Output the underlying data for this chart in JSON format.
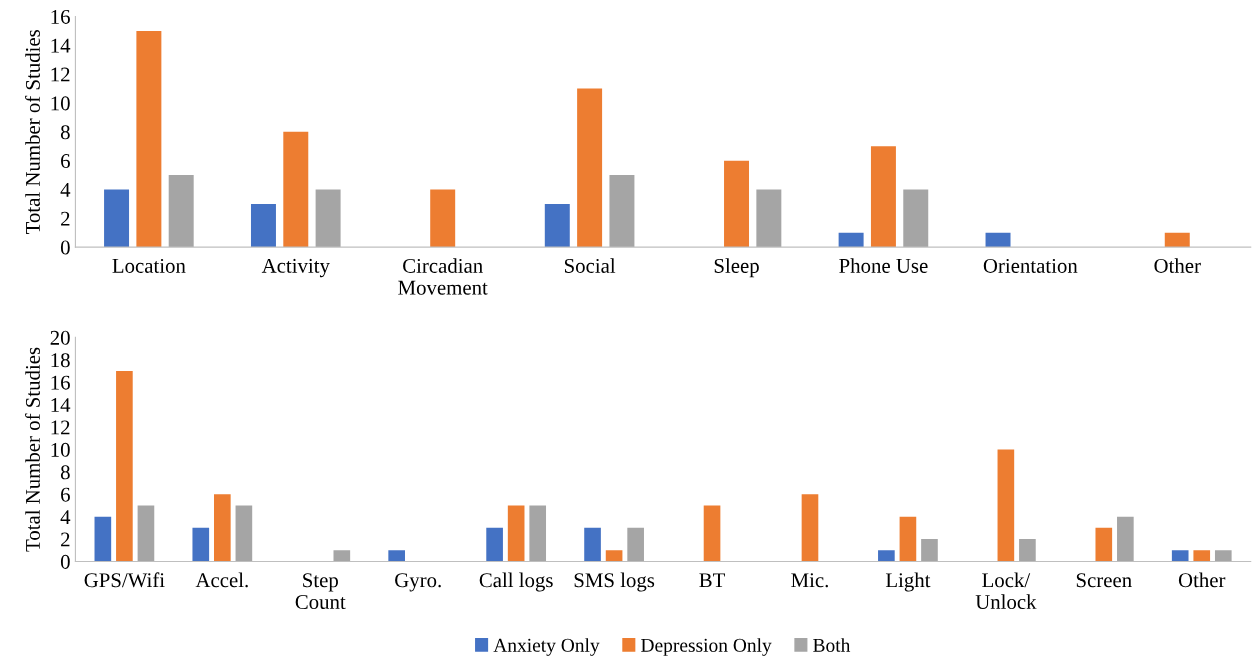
{
  "chart_data": [
    {
      "type": "bar",
      "ylabel": "Total Number of Studies",
      "categories": [
        "Location",
        "Activity",
        "Circadian\nMovement",
        "Social",
        "Sleep",
        "Phone Use",
        "Orientation",
        "Other"
      ],
      "series": [
        {
          "color": "#4472c4",
          "values": [
            4,
            3,
            null,
            3,
            null,
            1,
            1,
            null
          ]
        },
        {
          "color": "#ed7d31",
          "values": [
            15,
            8,
            4,
            11,
            6,
            7,
            null,
            1
          ]
        },
        {
          "color": "#a5a5a5",
          "values": [
            5,
            4,
            null,
            5,
            4,
            4,
            null,
            null
          ]
        }
      ],
      "ylim": [
        0,
        16
      ],
      "yticks": [
        0,
        2,
        4,
        6,
        8,
        10,
        12,
        14,
        16
      ],
      "grid": false,
      "legend": false
    },
    {
      "type": "bar",
      "ylabel": "Total Number of Studies",
      "categories": [
        "GPS/Wifi",
        "Accel.",
        "Step\nCount",
        "Gyro.",
        "Call logs",
        "SMS logs",
        "BT",
        "Mic.",
        "Light",
        "Lock/\nUnlock",
        "Screen",
        "Other"
      ],
      "series": [
        {
          "name": "Anxiety Only",
          "color": "#4472c4",
          "values": [
            4,
            3,
            null,
            1,
            3,
            3,
            null,
            null,
            1,
            null,
            null,
            1
          ]
        },
        {
          "name": "Depression Only",
          "color": "#ed7d31",
          "values": [
            17,
            6,
            null,
            null,
            5,
            1,
            5,
            6,
            4,
            10,
            3,
            1
          ]
        },
        {
          "name": "Both",
          "color": "#a5a5a5",
          "values": [
            5,
            5,
            1,
            null,
            5,
            3,
            null,
            null,
            2,
            2,
            4,
            1
          ]
        }
      ],
      "ylim": [
        0,
        20
      ],
      "yticks": [
        0,
        2,
        4,
        6,
        8,
        10,
        12,
        14,
        16,
        18,
        20
      ],
      "grid": false,
      "legend": "bottom"
    }
  ]
}
